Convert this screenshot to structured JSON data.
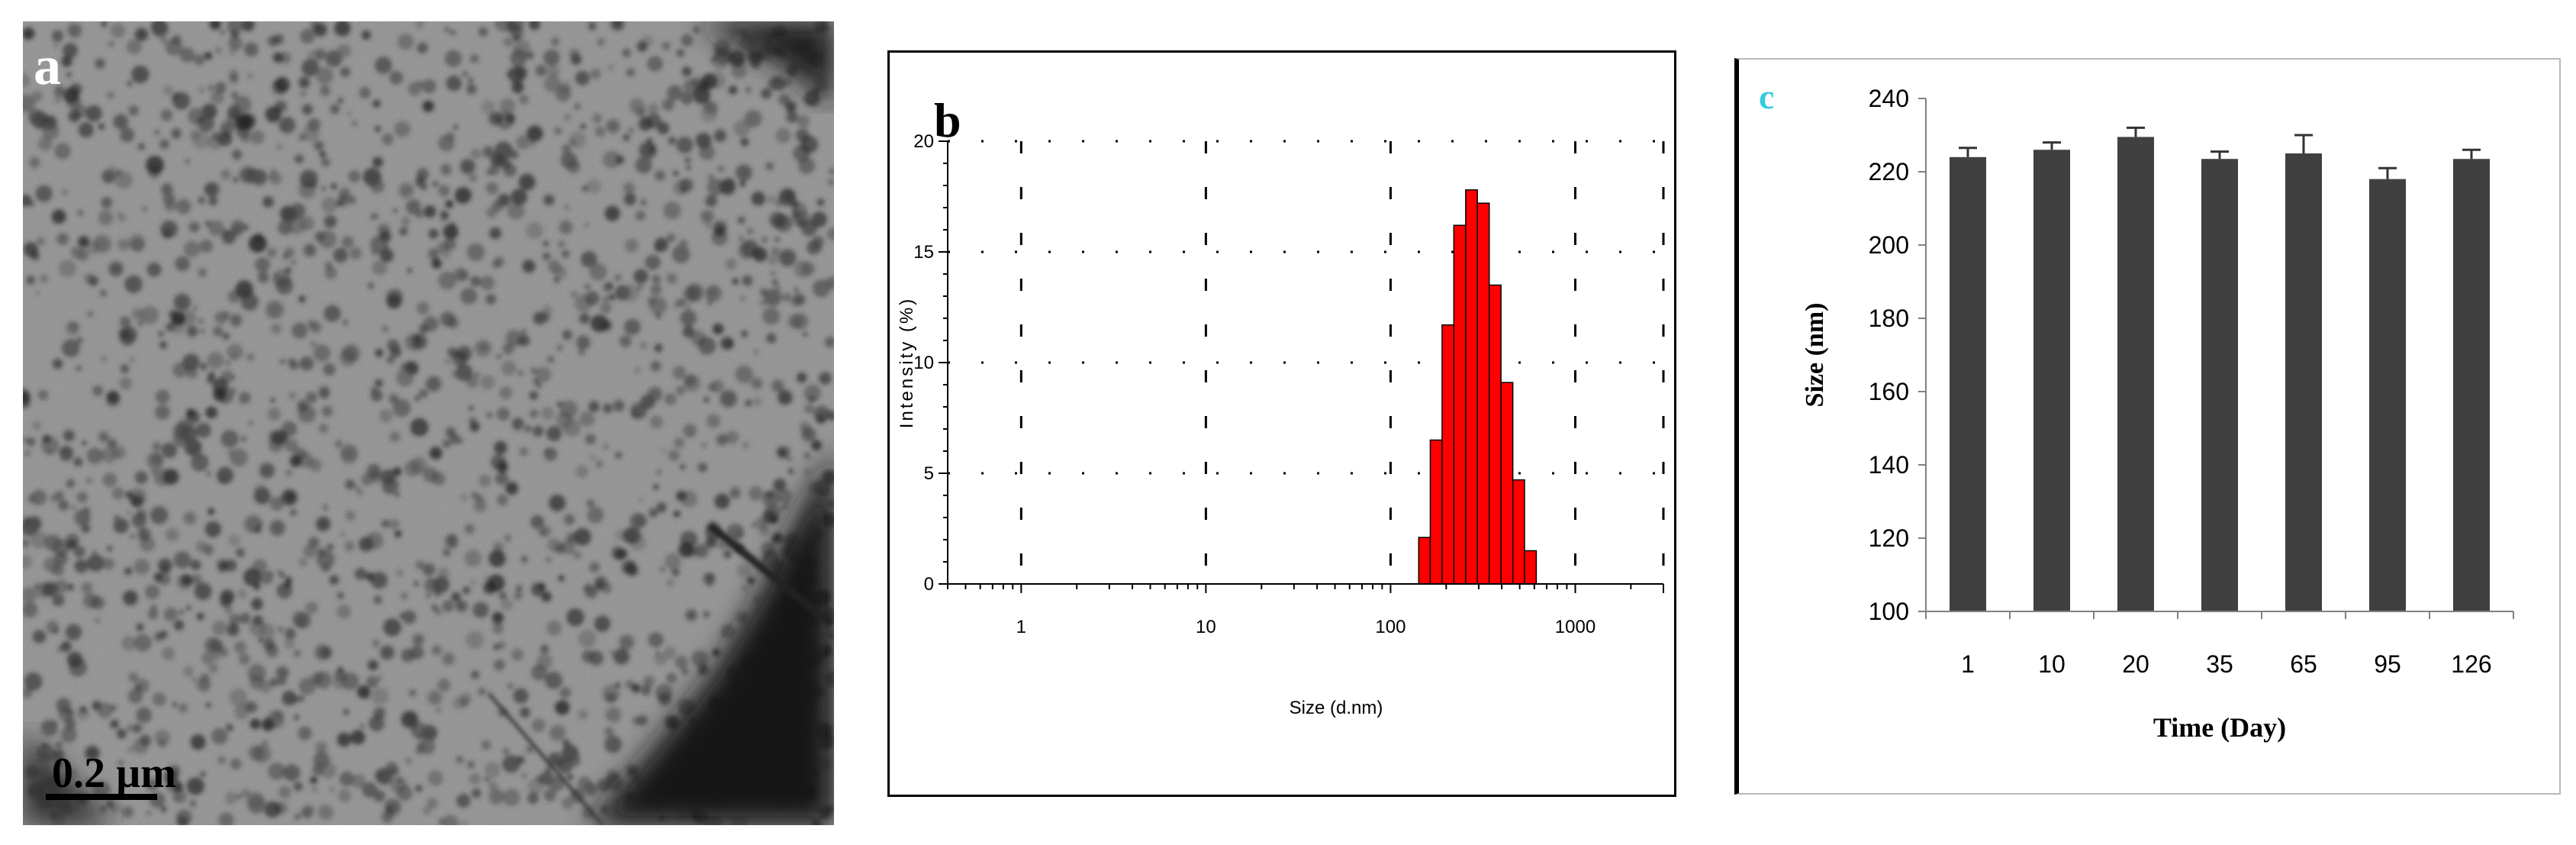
{
  "panels": {
    "a": {
      "label": "a",
      "scale_bar_label": "0.2 µm"
    },
    "b": {
      "label": "b"
    },
    "c": {
      "label": "c"
    }
  },
  "colors": {
    "histogram_fill": "#ff0000",
    "bar_fill": "#404040",
    "panel_c_label": "#33ccdd"
  },
  "chart_data": [
    {
      "panel": "b",
      "type": "bar",
      "title": "",
      "xlabel": "Size (d.nm)",
      "ylabel": "Intensity (%)",
      "x_scale": "log",
      "xlim": [
        0.4,
        3000
      ],
      "ylim": [
        0,
        20
      ],
      "x_ticks": [
        "1",
        "10",
        "100",
        "1000"
      ],
      "y_ticks": [
        "0",
        "5",
        "10",
        "15",
        "20"
      ],
      "grid": true,
      "bins": [
        {
          "x0": 142,
          "x1": 164,
          "value": 2.1
        },
        {
          "x0": 164,
          "x1": 190,
          "value": 6.5
        },
        {
          "x0": 190,
          "x1": 220,
          "value": 11.7
        },
        {
          "x0": 220,
          "x1": 255,
          "value": 16.2
        },
        {
          "x0": 255,
          "x1": 295,
          "value": 17.8
        },
        {
          "x0": 295,
          "x1": 342,
          "value": 17.2
        },
        {
          "x0": 342,
          "x1": 396,
          "value": 13.5
        },
        {
          "x0": 396,
          "x1": 459,
          "value": 9.1
        },
        {
          "x0": 459,
          "x1": 531,
          "value": 4.7
        },
        {
          "x0": 531,
          "x1": 615,
          "value": 1.5
        }
      ]
    },
    {
      "panel": "c",
      "type": "bar",
      "title": "",
      "xlabel": "Time (Day)",
      "ylabel": "Size (nm)",
      "ylim": [
        100,
        240
      ],
      "y_ticks": [
        "100",
        "120",
        "140",
        "160",
        "180",
        "200",
        "220",
        "240"
      ],
      "categories": [
        "1",
        "10",
        "20",
        "35",
        "65",
        "95",
        "126"
      ],
      "values": [
        224,
        226,
        229.5,
        223.5,
        225,
        218,
        223.5
      ],
      "error": [
        2.5,
        2,
        2.5,
        2,
        5,
        3,
        2.5
      ]
    }
  ]
}
